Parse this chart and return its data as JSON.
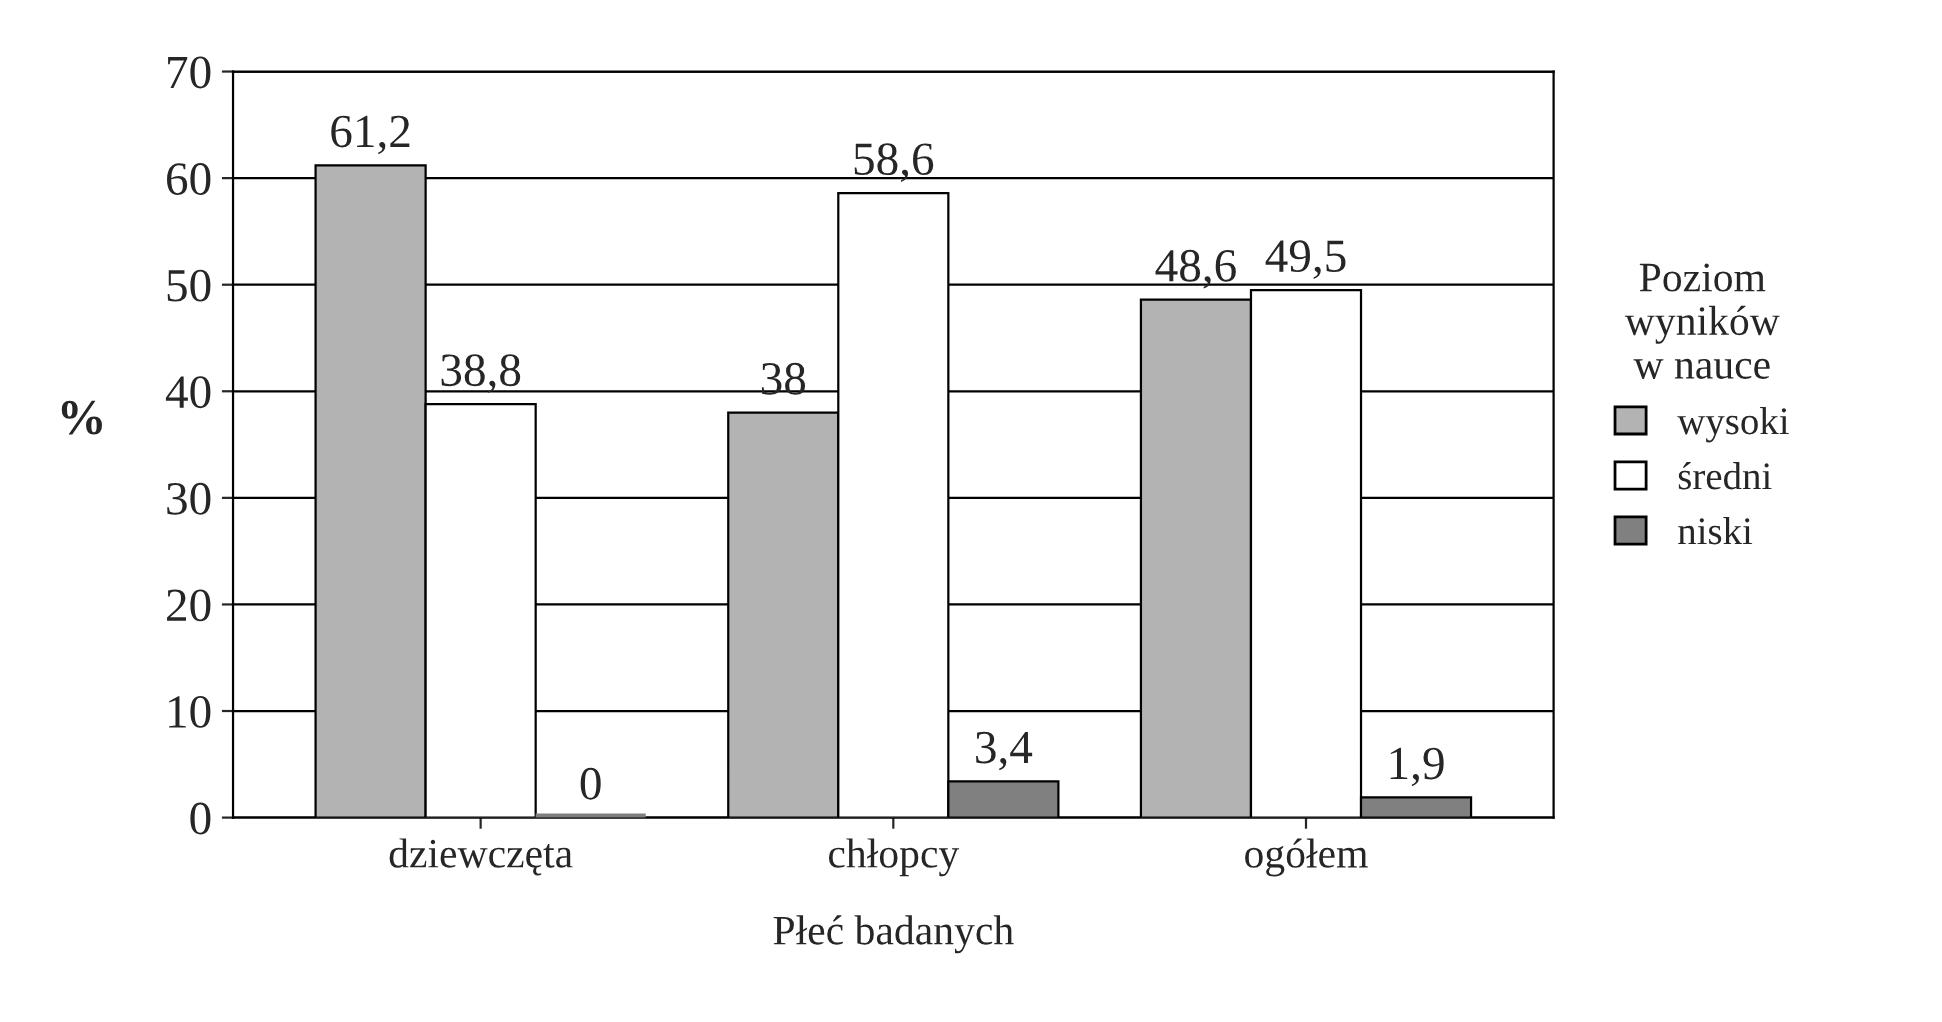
{
  "chart_data": {
    "type": "bar",
    "xlabel": "Płeć badanych",
    "ylabel": "%",
    "legend_title": "Poziom\nwyników\nw nauce",
    "categories": [
      "dziewczęta",
      "chłopcy",
      "ogółem"
    ],
    "series": [
      {
        "name": "wysoki",
        "color": "#b3b3b3",
        "values": [
          61.2,
          38,
          48.6
        ],
        "value_labels": [
          "61,2",
          "38",
          "48,6"
        ]
      },
      {
        "name": "średni",
        "color": "#ffffff",
        "values": [
          38.8,
          58.6,
          49.5
        ],
        "value_labels": [
          "38,8",
          "58,6",
          "49,5"
        ]
      },
      {
        "name": "niski",
        "color": "#808080",
        "values": [
          0,
          3.4,
          1.9
        ],
        "value_labels": [
          "0",
          "3,4",
          "1,9"
        ]
      }
    ],
    "ylim": [
      0,
      70
    ],
    "yticks": [
      0,
      10,
      20,
      30,
      40,
      50,
      60,
      70
    ],
    "grid": "y",
    "legend": "right"
  }
}
